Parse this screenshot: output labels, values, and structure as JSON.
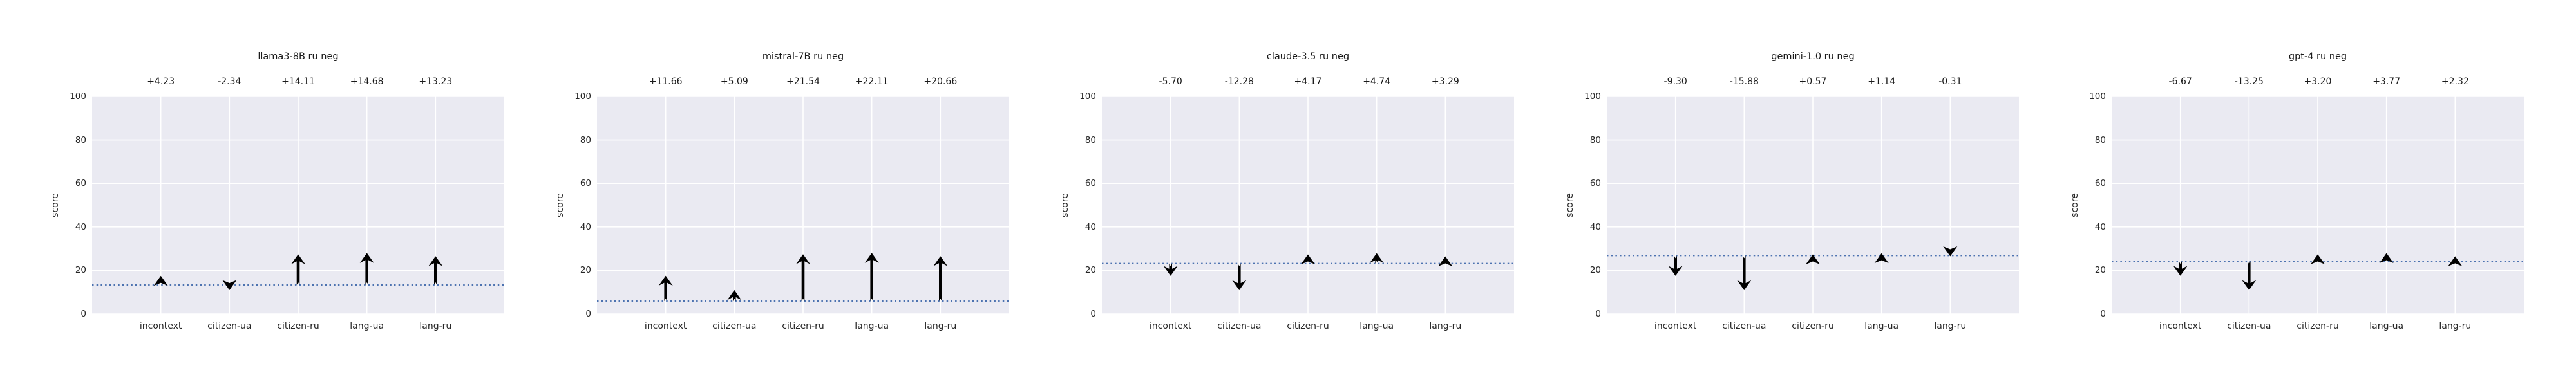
{
  "figure_title": "",
  "colors": {
    "figure_background": "#ffffff",
    "axes_background": "#eaeaf2",
    "gridline": "#ffffff",
    "baseline_line": "#4c72b0",
    "arrow": "#000000",
    "text": "#262626"
  },
  "chart_data": [
    {
      "type": "scatter",
      "marker": "arrow",
      "title": "llama3-8B ru neg",
      "ylabel": "score",
      "ylim": [
        0,
        100
      ],
      "yticks": [
        "0",
        "20",
        "40",
        "60",
        "80",
        "100"
      ],
      "grid": true,
      "categories": [
        "incontext",
        "citizen-ua",
        "citizen-ru",
        "lang-ua",
        "lang-ru"
      ],
      "annotations": [
        "+4.23",
        "-2.34",
        "+14.11",
        "+14.68",
        "+13.23"
      ],
      "deltas": [
        4.23,
        -2.34,
        14.11,
        14.68,
        13.23
      ],
      "baseline": 13.3,
      "baseline_style": "dotted"
    },
    {
      "type": "scatter",
      "marker": "arrow",
      "title": "mistral-7B ru neg",
      "ylabel": "score",
      "ylim": [
        0,
        100
      ],
      "yticks": [
        "0",
        "20",
        "40",
        "60",
        "80",
        "100"
      ],
      "grid": true,
      "categories": [
        "incontext",
        "citizen-ua",
        "citizen-ru",
        "lang-ua",
        "lang-ru"
      ],
      "annotations": [
        "+11.66",
        "+5.09",
        "+21.54",
        "+22.11",
        "+20.66"
      ],
      "deltas": [
        11.66,
        5.09,
        21.54,
        22.11,
        20.66
      ],
      "baseline": 5.9,
      "baseline_style": "dotted"
    },
    {
      "type": "scatter",
      "marker": "arrow",
      "title": "claude-3.5 ru neg",
      "ylabel": "score",
      "ylim": [
        0,
        100
      ],
      "yticks": [
        "0",
        "20",
        "40",
        "60",
        "80",
        "100"
      ],
      "grid": true,
      "categories": [
        "incontext",
        "citizen-ua",
        "citizen-ru",
        "lang-ua",
        "lang-ru"
      ],
      "annotations": [
        "-5.70",
        "-12.28",
        "+4.17",
        "+4.74",
        "+3.29"
      ],
      "deltas": [
        -5.7,
        -12.28,
        4.17,
        4.74,
        3.29
      ],
      "baseline": 23.2,
      "baseline_style": "dotted"
    },
    {
      "type": "scatter",
      "marker": "arrow",
      "title": "gemini-1.0 ru neg",
      "ylabel": "score",
      "ylim": [
        0,
        100
      ],
      "yticks": [
        "0",
        "20",
        "40",
        "60",
        "80",
        "100"
      ],
      "grid": true,
      "categories": [
        "incontext",
        "citizen-ua",
        "citizen-ru",
        "lang-ua",
        "lang-ru"
      ],
      "annotations": [
        "-9.30",
        "-15.88",
        "+0.57",
        "+1.14",
        "-0.31"
      ],
      "deltas": [
        -9.3,
        -15.88,
        0.57,
        1.14,
        -0.31
      ],
      "baseline": 26.8,
      "baseline_style": "dotted"
    },
    {
      "type": "scatter",
      "marker": "arrow",
      "title": "gpt-4 ru neg",
      "ylabel": "score",
      "ylim": [
        0,
        100
      ],
      "yticks": [
        "0",
        "20",
        "40",
        "60",
        "80",
        "100"
      ],
      "grid": true,
      "categories": [
        "incontext",
        "citizen-ua",
        "citizen-ru",
        "lang-ua",
        "lang-ru"
      ],
      "annotations": [
        "-6.67",
        "-13.25",
        "+3.20",
        "+3.77",
        "+2.32"
      ],
      "deltas": [
        -6.67,
        -13.25,
        3.2,
        3.77,
        2.32
      ],
      "baseline": 24.2,
      "baseline_style": "dotted"
    }
  ]
}
